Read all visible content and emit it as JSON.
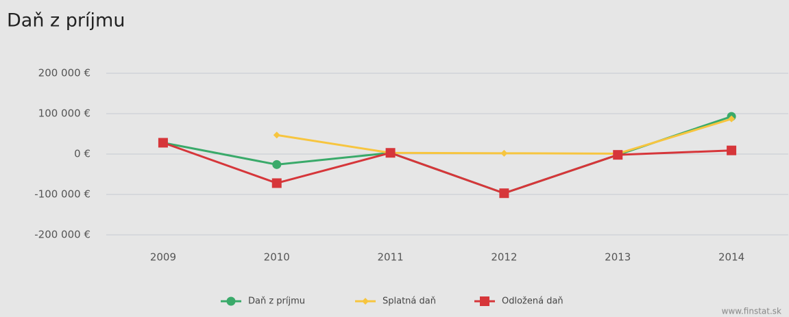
{
  "chart_data": {
    "type": "line",
    "title": "Daň z príjmu",
    "categories": [
      "2009",
      "2010",
      "2011",
      "2012",
      "2013",
      "2014"
    ],
    "series": [
      {
        "name": "Daň z príjmu",
        "color": "#3aaa6a",
        "marker": "circle",
        "values": [
          28000,
          -26000,
          3000,
          -97000,
          -2000,
          93000
        ]
      },
      {
        "name": "Splatná daň",
        "color": "#f7c53f",
        "marker": "diamond",
        "values": [
          null,
          47000,
          3000,
          2000,
          1000,
          87000
        ]
      },
      {
        "name": "Odložená daň",
        "color": "#d6363a",
        "marker": "square",
        "values": [
          28000,
          -72000,
          3000,
          -97000,
          -2000,
          9000
        ]
      }
    ],
    "ylim": [
      -200000,
      200000
    ],
    "yticks": [
      {
        "value": -200000,
        "label": "-200 000 €"
      },
      {
        "value": -100000,
        "label": "-100 000 €"
      },
      {
        "value": 0,
        "label": "0 €"
      },
      {
        "value": 100000,
        "label": "100 000 €"
      },
      {
        "value": 200000,
        "label": "200 000 €"
      }
    ],
    "grid": true,
    "legend": "bottom",
    "source": "www.finstat.sk"
  }
}
